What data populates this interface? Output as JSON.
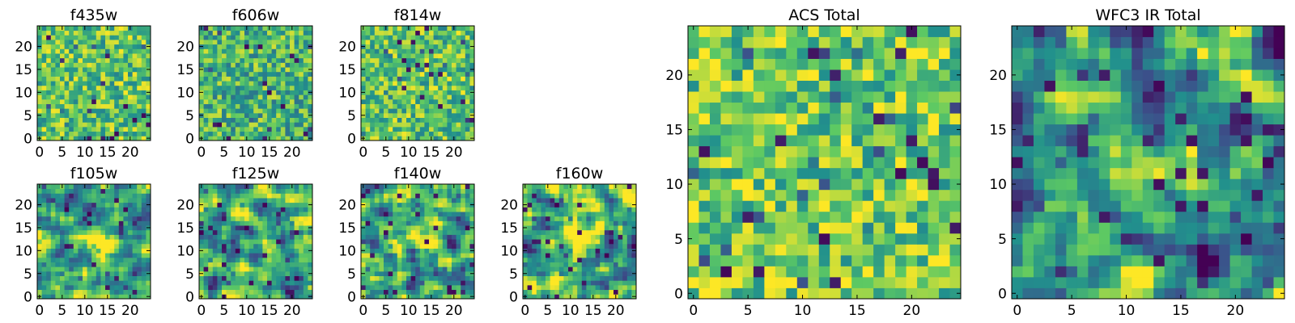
{
  "figure": {
    "colormap_name": "viridis",
    "colormap_stops": [
      "#440154",
      "#3b528b",
      "#21908d",
      "#5dc963",
      "#fde725"
    ]
  },
  "chart_data": [
    {
      "id": "f435w",
      "type": "heatmap",
      "title": "f435w",
      "grid_size": 25,
      "xlim": [
        -0.5,
        24.5
      ],
      "ylim": [
        -0.5,
        24.5
      ],
      "xticks": [
        0,
        5,
        10,
        15,
        20
      ],
      "yticks": [
        0,
        5,
        10,
        15,
        20
      ],
      "pattern": "noise",
      "value_range": [
        0,
        1
      ],
      "typical_level": 0.72,
      "source_peak": null
    },
    {
      "id": "f606w",
      "type": "heatmap",
      "title": "f606w",
      "grid_size": 25,
      "xlim": [
        -0.5,
        24.5
      ],
      "ylim": [
        -0.5,
        24.5
      ],
      "xticks": [
        0,
        5,
        10,
        15,
        20
      ],
      "yticks": [
        0,
        5,
        10,
        15,
        20
      ],
      "pattern": "noise",
      "value_range": [
        0,
        1
      ],
      "typical_level": 0.66,
      "source_peak": null
    },
    {
      "id": "f814w",
      "type": "heatmap",
      "title": "f814w",
      "grid_size": 25,
      "xlim": [
        -0.5,
        24.5
      ],
      "ylim": [
        -0.5,
        24.5
      ],
      "xticks": [
        0,
        5,
        10,
        15,
        20
      ],
      "yticks": [
        0,
        5,
        10,
        15,
        20
      ],
      "pattern": "noise",
      "value_range": [
        0,
        1
      ],
      "typical_level": 0.72,
      "source_peak": null
    },
    {
      "id": "f105w",
      "type": "heatmap",
      "title": "f105w",
      "grid_size": 25,
      "xlim": [
        -0.5,
        24.5
      ],
      "ylim": [
        -0.5,
        24.5
      ],
      "xticks": [
        0,
        5,
        10,
        15,
        20
      ],
      "yticks": [
        0,
        5,
        10,
        15,
        20
      ],
      "pattern": "smooth-noise",
      "value_range": [
        0,
        1
      ],
      "typical_level": 0.62,
      "source_peak": {
        "x": 12,
        "y": 12,
        "amplitude": 0.3,
        "sigma": 2.5
      }
    },
    {
      "id": "f125w",
      "type": "heatmap",
      "title": "f125w",
      "grid_size": 25,
      "xlim": [
        -0.5,
        24.5
      ],
      "ylim": [
        -0.5,
        24.5
      ],
      "xticks": [
        0,
        5,
        10,
        15,
        20
      ],
      "yticks": [
        0,
        5,
        10,
        15,
        20
      ],
      "pattern": "smooth-noise",
      "value_range": [
        0,
        1
      ],
      "typical_level": 0.64,
      "source_peak": null
    },
    {
      "id": "f140w",
      "type": "heatmap",
      "title": "f140w",
      "grid_size": 25,
      "xlim": [
        -0.5,
        24.5
      ],
      "ylim": [
        -0.5,
        24.5
      ],
      "xticks": [
        0,
        5,
        10,
        15,
        20
      ],
      "yticks": [
        0,
        5,
        10,
        15,
        20
      ],
      "pattern": "smooth-noise",
      "value_range": [
        0,
        1
      ],
      "typical_level": 0.6,
      "source_peak": {
        "x": 12,
        "y": 12,
        "amplitude": 0.22,
        "sigma": 3
      }
    },
    {
      "id": "f160w",
      "type": "heatmap",
      "title": "f160w",
      "grid_size": 25,
      "xlim": [
        -0.5,
        24.5
      ],
      "ylim": [
        -0.5,
        24.5
      ],
      "xticks": [
        0,
        5,
        10,
        15,
        20
      ],
      "yticks": [
        0,
        5,
        10,
        15,
        20
      ],
      "pattern": "smooth-noise",
      "value_range": [
        0,
        1
      ],
      "typical_level": 0.62,
      "source_peak": {
        "x": 12,
        "y": 12,
        "amplitude": 0.22,
        "sigma": 3
      }
    },
    {
      "id": "acs-total",
      "type": "heatmap",
      "title": "ACS Total",
      "grid_size": 25,
      "xlim": [
        -0.5,
        24.5
      ],
      "ylim": [
        -0.5,
        24.5
      ],
      "xticks": [
        0,
        5,
        10,
        15,
        20
      ],
      "yticks": [
        0,
        5,
        10,
        15,
        20
      ],
      "pattern": "noise",
      "value_range": [
        0,
        1
      ],
      "typical_level": 0.76,
      "source_peak": null
    },
    {
      "id": "wfc3-ir-total",
      "type": "heatmap",
      "title": "WFC3 IR Total",
      "grid_size": 25,
      "xlim": [
        -0.5,
        24.5
      ],
      "ylim": [
        -0.5,
        24.5
      ],
      "xticks": [
        0,
        5,
        10,
        15,
        20
      ],
      "yticks": [
        0,
        5,
        10,
        15,
        20
      ],
      "pattern": "smooth-noise",
      "value_range": [
        0,
        1
      ],
      "typical_level": 0.5,
      "source_peak": {
        "x": 12,
        "y": 12.5,
        "amplitude": 0.48,
        "sigma": 2.6
      }
    }
  ]
}
